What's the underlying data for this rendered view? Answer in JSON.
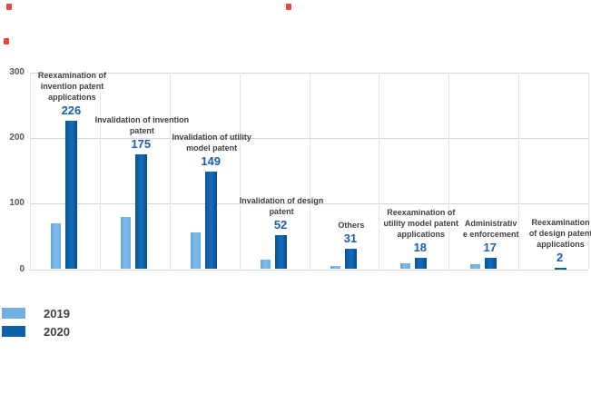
{
  "chart_data": {
    "type": "bar",
    "title": "",
    "categories": [
      "Reexamination of invention patent applications",
      "Invalidation of invention patent",
      "Invalidation of utility model patent",
      "Invalidation of design patent",
      "Others",
      "Reexamination of utility model patent applications",
      "Administrative enforcement",
      "Reexamination of design patent applications"
    ],
    "category_label_lines": [
      [
        "Reexamination of",
        "invention patent",
        "applications"
      ],
      [
        "Invalidation of invention",
        "patent"
      ],
      [
        "Invalidation of utility",
        "model patent"
      ],
      [
        "Invalidation of design",
        "patent"
      ],
      [
        "Others"
      ],
      [
        "Reexamination of",
        "utility model patent",
        "applications"
      ],
      [
        "Administrativ",
        "e enforcement"
      ],
      [
        "Reexamination",
        "of design patent",
        "applications"
      ]
    ],
    "series": [
      {
        "name": "2019",
        "color": "#74AFE1",
        "labeled": false,
        "values": [
          70,
          80,
          56,
          14,
          5,
          9,
          7,
          0
        ]
      },
      {
        "name": "2020",
        "color": "#0D60AA",
        "labeled": true,
        "values": [
          226,
          175,
          149,
          52,
          31,
          18,
          17,
          2
        ]
      }
    ],
    "value_labels_2020": [
      "226",
      "175",
      "149",
      "52",
      "31",
      "18",
      "17",
      "2"
    ],
    "y_axis": {
      "min": 0,
      "max": 300,
      "ticks": [
        300,
        200,
        100,
        0
      ],
      "grid": true
    },
    "x_axis": {
      "tick_labels_below_axis": false
    },
    "legend": {
      "position": "bottom-left",
      "entries": [
        {
          "label": "2019",
          "color": "#74AFE1"
        },
        {
          "label": "2020",
          "color": "#0D60AA"
        }
      ]
    },
    "colors": {
      "value_label": "#1B5FAE",
      "category_label": "#404040",
      "axis_label": "#595959",
      "gridline_h": "#D6D6D6",
      "gridline_v": "#E6E6E6",
      "artifact_red": "#E0342B"
    }
  },
  "decorations": {
    "red_marker_count": 3
  }
}
